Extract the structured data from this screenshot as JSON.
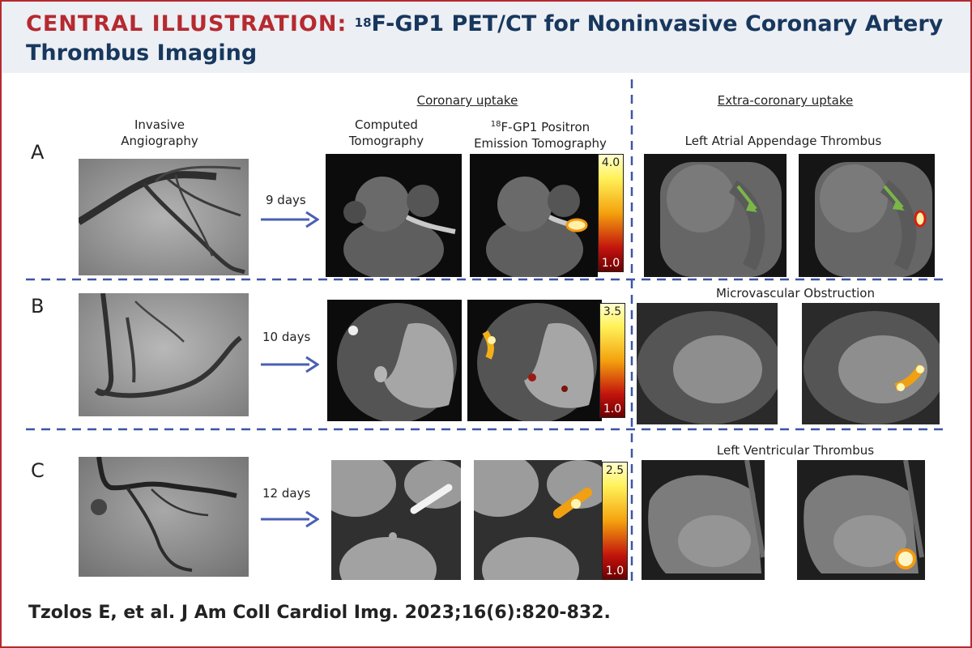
{
  "header": {
    "kicker": "CENTRAL ILLUSTRATION:",
    "sup": "18",
    "title_rest": "F-GP1 PET/CT for Noninvasive Coronary Artery",
    "title_line2": "Thrombus Imaging"
  },
  "columns": {
    "coronary_uptake": "Coronary uptake",
    "extra_coronary_uptake": "Extra-coronary uptake",
    "angiography_l1": "Invasive",
    "angiography_l2": "Angiography",
    "ct_l1": "Computed",
    "ct_l2": "Tomography",
    "pet_sup": "18",
    "pet_l1": "F-GP1 Positron",
    "pet_l2": "Emission Tomography"
  },
  "rows": [
    {
      "letter": "A",
      "days": "9 days",
      "scale_max": "4.0",
      "scale_min": "1.0",
      "finding": "Left Atrial Appendage Thrombus"
    },
    {
      "letter": "B",
      "days": "10 days",
      "scale_max": "3.5",
      "scale_min": "1.0",
      "finding": "Microvascular Obstruction"
    },
    {
      "letter": "C",
      "days": "12 days",
      "scale_max": "2.5",
      "scale_min": "1.0",
      "finding": "Left Ventricular Thrombus"
    }
  ],
  "colors": {
    "accent_red": "#b52a30",
    "navy": "#17375e",
    "arrow_blue": "#4a5fb4",
    "dash_blue": "#3b56a6",
    "green_arrow": "#7ab648"
  },
  "citation": "Tzolos E, et al. J Am Coll Cardiol Img. 2023;16(6):820-832."
}
